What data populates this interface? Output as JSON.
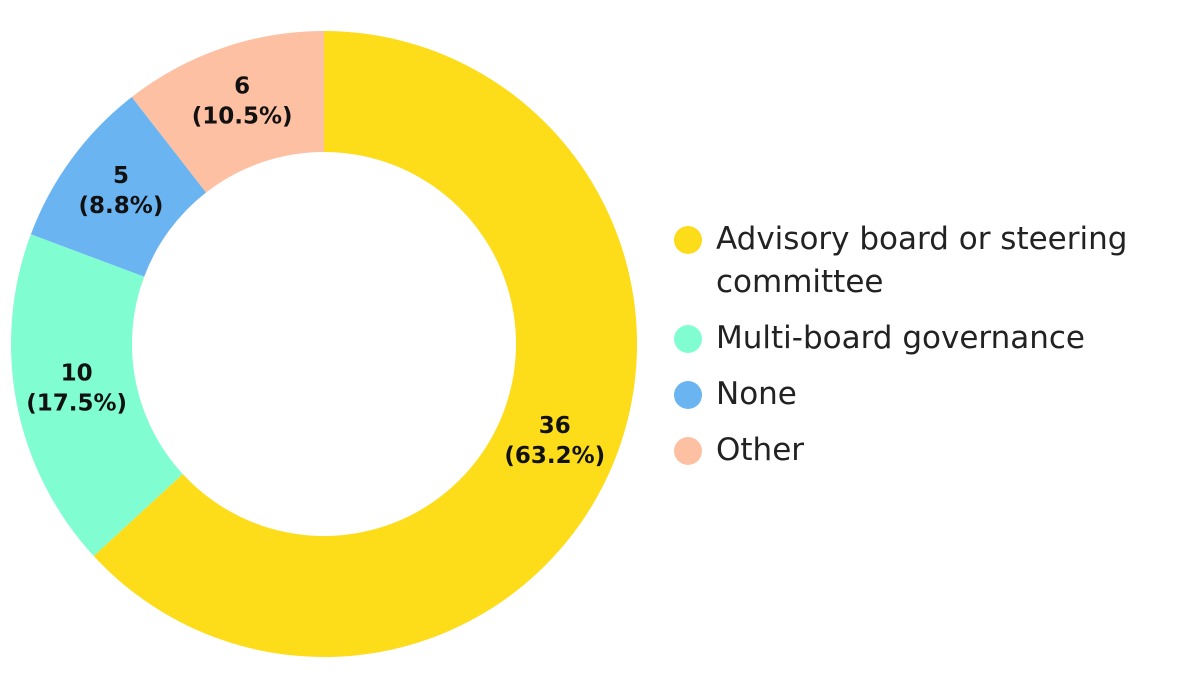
{
  "chart_data": {
    "type": "donut",
    "categories": [
      "Advisory board or steering committee",
      "Multi-board governance",
      "None",
      "Other"
    ],
    "values": [
      36,
      10,
      5,
      6
    ],
    "value_labels": [
      [
        "36",
        "(63.2%)"
      ],
      [
        "10",
        "(17.5%)"
      ],
      [
        "5",
        "(8.8%)"
      ],
      [
        "6",
        "(10.5%)"
      ]
    ],
    "colors": [
      "#fddc1a",
      "#80fdd1",
      "#6bb4f2",
      "#fec0a2"
    ],
    "legend": "right"
  }
}
